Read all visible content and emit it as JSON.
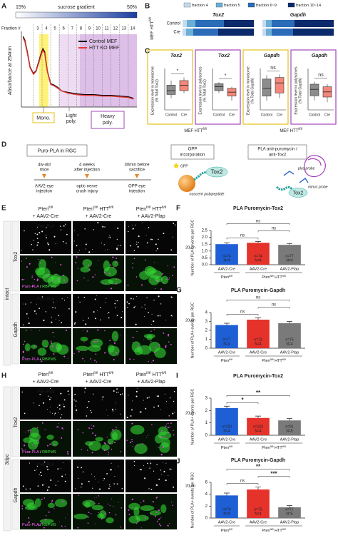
{
  "figure": {
    "panel_labels": [
      "A",
      "B",
      "C",
      "D",
      "E",
      "F",
      "G",
      "H",
      "I",
      "J"
    ],
    "a": {
      "gradient_left": "15%",
      "gradient_title": "sucrose gradient",
      "gradient_right": "50%",
      "regions": [
        [
          "Mono."
        ],
        [
          "Light",
          "poly."
        ],
        [
          "Heavy",
          "poly."
        ]
      ]
    },
    "c_group_labels": [
      [
        "MEF HTT",
        "fl/fl"
      ],
      [
        "MEF HTT",
        "fl/fl"
      ]
    ],
    "d": {
      "title": "Puro-PLA in RGC",
      "timeline_top": [
        [
          "4w-old",
          "mice"
        ],
        [
          "4 weeks",
          "after injection"
        ],
        [
          "30min before",
          "sacrifice"
        ]
      ],
      "timeline_bottom": [
        [
          "AAV2 eye",
          "injection"
        ],
        [
          "optic nerve",
          "crush injury"
        ],
        [
          "OPP eye",
          "injection"
        ]
      ],
      "opp_box": [
        "OPP",
        "incorporation"
      ],
      "opp": "OPP",
      "tox2": "Tox2",
      "nascent": "nascent polypeptide",
      "pla_box": [
        "PLA anti-puromycin /",
        "anti-Tox2"
      ],
      "plus_probe": "plus probe",
      "minus_probe": "minus probe"
    },
    "e": {
      "condition": "intact",
      "rows": [
        "Tox2",
        "Gapdh"
      ],
      "columns": [
        [
          "Pten",
          "fl/fl"
        ],
        [
          "Pten",
          "fl/fl",
          " HTT",
          "fl/fl"
        ],
        [
          "Pten",
          "fl/fl",
          " HTT",
          "fl/fl"
        ]
      ],
      "column_vectors": [
        "+ AAV2-Cre",
        "+ AAV2-Cre",
        "+ AAV2-Plap"
      ],
      "puro_label": "Puro-PLA",
      "merge_label": [
        "Puro-PLA",
        " / ",
        "RBPMS"
      ],
      "scale_bar": "20µm"
    },
    "h": {
      "condition": "3dpc",
      "rows": [
        "Tox2",
        "Gapdh"
      ],
      "columns": [
        [
          "Pten",
          "fl/fl"
        ],
        [
          "Pten",
          "fl/fl",
          " HTT",
          "fl/fl"
        ],
        [
          "Pten",
          "fl/fl",
          " HTT",
          "fl/fl"
        ]
      ],
      "column_vectors": [
        "+ AAV2-Cre",
        "+ AAV2-Cre",
        "+ AAV2-Plap"
      ],
      "puro_label": "Puro-PLA",
      "merge_label": [
        "Puro-PLA",
        " / ",
        "RBPMS"
      ],
      "scale_bar": "20µm"
    }
  },
  "chart_data": [
    {
      "type": "line",
      "ylabel": "Absorbance at 254nm",
      "xlabel": "Fraction #",
      "xlim": [
        1.6,
        15
      ],
      "ylim": [
        0,
        1
      ],
      "xticks": [
        3,
        4,
        5,
        6,
        7,
        8,
        9,
        10,
        11,
        12,
        13,
        14
      ],
      "x": [
        1.8,
        2.0,
        2.3,
        2.6,
        3.0,
        3.3,
        3.6,
        3.9,
        4.1,
        4.3,
        4.6,
        5.0,
        5.4,
        5.8,
        6.3,
        7.0,
        7.5,
        8.0,
        9.0,
        10.0,
        11.0,
        12.0,
        13.0,
        14.0,
        14.6
      ],
      "series": [
        {
          "name": "Control MEF",
          "color": "#000000",
          "values": [
            0.97,
            0.92,
            0.75,
            0.55,
            0.46,
            0.5,
            0.62,
            0.74,
            0.8,
            0.76,
            0.5,
            0.32,
            0.3,
            0.27,
            0.22,
            0.2,
            0.19,
            0.18,
            0.17,
            0.17,
            0.16,
            0.16,
            0.15,
            0.14,
            0.12
          ]
        },
        {
          "name": "HTT KO MEF",
          "color": "#e8352e",
          "values": [
            0.95,
            0.9,
            0.73,
            0.54,
            0.45,
            0.49,
            0.6,
            0.72,
            0.78,
            0.74,
            0.49,
            0.31,
            0.29,
            0.26,
            0.22,
            0.19,
            0.18,
            0.17,
            0.16,
            0.16,
            0.15,
            0.15,
            0.14,
            0.13,
            0.11
          ]
        }
      ]
    },
    {
      "type": "stacked_bar",
      "categories": [
        "Control",
        "Cre"
      ],
      "group_label": [
        "MEF HTT",
        "fl/fl"
      ],
      "xlim": [
        0,
        100
      ],
      "series": [
        {
          "name": "fraction 4",
          "color": "#c6dbef"
        },
        {
          "name": "fraction 5",
          "color": "#6baed6"
        },
        {
          "name": "fraction 6~9",
          "color": "#2b6cb8"
        },
        {
          "name": "fraction 10~14",
          "color": "#0a2a6b"
        }
      ],
      "facets": [
        {
          "title": "Tox2",
          "values": [
            [
              6,
              5
            ],
            [
              12,
              10
            ],
            [
              40,
              35
            ],
            [
              42,
              50
            ]
          ]
        },
        {
          "title": "Gapdh",
          "values": [
            [
              5,
              5
            ],
            [
              8,
              8
            ],
            [
              32,
              30
            ],
            [
              55,
              57
            ]
          ]
        }
      ]
    },
    {
      "type": "box",
      "title": "Tox2",
      "ylabel": [
        "Expression level in monosome",
        "(% Total Tox2)"
      ],
      "frame_color": "#e3c21a",
      "categories": [
        "Control",
        "Cre"
      ],
      "colors": [
        "#8c8c8c",
        "#f4877a"
      ],
      "ylim": [
        0,
        50
      ],
      "significance": "*",
      "boxes": [
        {
          "min": 15,
          "q1": 20,
          "median": 25,
          "q3": 32,
          "max": 38
        },
        {
          "min": 22,
          "q1": 25,
          "median": 32,
          "q3": 38,
          "max": 42
        }
      ]
    },
    {
      "type": "box",
      "title": "Tox2",
      "ylabel": [
        "Expression level in polysomes",
        "(% Total Tox2)"
      ],
      "frame_color": "#a347b8",
      "categories": [
        "Control",
        "Cre"
      ],
      "colors": [
        "#8c8c8c",
        "#f4877a"
      ],
      "ylim": [
        50,
        100
      ],
      "significance": "*",
      "boxes": [
        {
          "min": 72,
          "q1": 75,
          "median": 80,
          "q3": 84,
          "max": 86
        },
        {
          "min": 62,
          "q1": 68,
          "median": 73,
          "q3": 78,
          "max": 80
        }
      ]
    },
    {
      "type": "box",
      "title": "Gapdh",
      "ylabel": [
        "Expression level in monosome",
        "(% Total Gapdh)"
      ],
      "frame_color": "#e3c21a",
      "categories": [
        "Control",
        "Cre"
      ],
      "colors": [
        "#8c8c8c",
        "#f4877a"
      ],
      "ylim": [
        0,
        50
      ],
      "significance": "ns",
      "boxes": [
        {
          "min": 12,
          "q1": 18,
          "median": 28,
          "q3": 40,
          "max": 45
        },
        {
          "min": 15,
          "q1": 22,
          "median": 35,
          "q3": 42,
          "max": 46
        }
      ]
    },
    {
      "type": "box",
      "title": "Gapdh",
      "ylabel": [
        "Expression level in polysomes",
        "(% Total Gapdh)"
      ],
      "frame_color": "#a347b8",
      "categories": [
        "Control",
        "Cre"
      ],
      "colors": [
        "#8c8c8c",
        "#f4877a"
      ],
      "ylim": [
        40,
        100
      ],
      "significance": "ns",
      "boxes": [
        {
          "min": 55,
          "q1": 62,
          "median": 72,
          "q3": 80,
          "max": 84
        },
        {
          "min": 52,
          "q1": 60,
          "median": 68,
          "q3": 76,
          "max": 80
        }
      ]
    },
    {
      "type": "bar",
      "title": "PLA Puromycin-Tox2",
      "ylabel": "Number of PLA+ events per RGC",
      "categories": [
        "AAV2-Cre",
        "AAV2-Cre",
        "AAV2-Plap"
      ],
      "colors": [
        "#1f5fd6",
        "#e5322b",
        "#7a7a7a"
      ],
      "values": [
        1.5,
        1.6,
        1.45
      ],
      "errors": [
        0.1,
        0.1,
        0.1
      ],
      "n_labels": [
        "n=74",
        "n=74",
        "n=77"
      ],
      "N_labels": [
        "N=4",
        "N=4",
        "N=4"
      ],
      "groups": [
        {
          "label": [
            "Pten",
            "fl/fl"
          ],
          "span": [
            0,
            0
          ]
        },
        {
          "label": [
            "Pten",
            "fl/fl",
            " HTT",
            "fl/fl"
          ],
          "span": [
            1,
            2
          ]
        }
      ],
      "ylim": [
        0,
        2.5
      ],
      "yticks": [
        {
          "value": 0,
          "label": "0.0"
        },
        0.5,
        {
          "value": 1,
          "label": "1.0"
        },
        1.5,
        {
          "value": 2,
          "label": "2.0"
        },
        2.5
      ],
      "significance": [
        {
          "pair": [
            0,
            1
          ],
          "label": "ns"
        },
        {
          "pair": [
            1,
            2
          ],
          "label": "ns"
        },
        {
          "pair": [
            0,
            2
          ],
          "label": "ns"
        }
      ]
    },
    {
      "type": "bar",
      "title": "PLA Puromycin-Gapdh",
      "ylabel": "Number of PLA+ events per RGC",
      "categories": [
        "AAV2-Cre",
        "AAV2-Cre",
        "AAV2-Plap"
      ],
      "colors": [
        "#1f5fd6",
        "#e5322b",
        "#7a7a7a"
      ],
      "values": [
        2.6,
        3.2,
        2.8
      ],
      "errors": [
        0.2,
        0.2,
        0.2
      ],
      "n_labels": [
        "n=77",
        "n=73",
        "n=75"
      ],
      "N_labels": [
        "N=4",
        "N=4",
        "N=4"
      ],
      "groups": [
        {
          "label": [
            "Pten",
            "fl/fl"
          ],
          "span": [
            0,
            0
          ]
        },
        {
          "label": [
            "Pten",
            "fl/fl",
            " HTT",
            "fl/fl"
          ],
          "span": [
            1,
            2
          ]
        }
      ],
      "ylim": [
        0,
        4
      ],
      "yticks": [
        0,
        1,
        2,
        3,
        4
      ],
      "significance": [
        {
          "pair": [
            0,
            1
          ],
          "label": "ns"
        },
        {
          "pair": [
            1,
            2
          ],
          "label": "ns"
        },
        {
          "pair": [
            0,
            2
          ],
          "label": "ns"
        }
      ]
    },
    {
      "type": "bar",
      "title": "PLA Puromycin-Tox2",
      "ylabel": "Number of PLA+ events per RGC",
      "categories": [
        "AAV2-Cre",
        "AAV2-Cre",
        "AAV2-Plap"
      ],
      "colors": [
        "#1f5fd6",
        "#e5322b",
        "#7a7a7a"
      ],
      "values": [
        2.2,
        1.4,
        1.2
      ],
      "errors": [
        0.15,
        0.15,
        0.15
      ],
      "n_labels": [
        "n=100",
        "n=103",
        "n=91"
      ],
      "N_labels": [
        "N=4",
        "N=4",
        "N=5"
      ],
      "groups": [
        {
          "label": [
            "Pten",
            "fl/fl"
          ],
          "span": [
            0,
            0
          ]
        },
        {
          "label": [
            "Pten",
            "fl/fl",
            " HTT",
            "fl/fl"
          ],
          "span": [
            1,
            2
          ]
        }
      ],
      "ylim": [
        0,
        3
      ],
      "yticks": [
        0,
        1,
        2,
        3
      ],
      "significance": [
        {
          "pair": [
            0,
            1
          ],
          "label": "*"
        },
        {
          "pair": [
            0,
            2
          ],
          "label": "**"
        }
      ]
    },
    {
      "type": "bar",
      "title": "PLA Puromycin-Gapdh",
      "ylabel": "Number of PLA+ events per RGC",
      "categories": [
        "AAV2-Cre",
        "AAV2-Cre",
        "AAV2-Plap"
      ],
      "colors": [
        "#1f5fd6",
        "#e5322b",
        "#7a7a7a"
      ],
      "values": [
        3.8,
        4.8,
        1.8
      ],
      "errors": [
        0.4,
        0.4,
        0.3
      ],
      "n_labels": [
        "n=70",
        "n=75",
        "n=77"
      ],
      "N_labels": [
        "N=4",
        "N=4",
        "N=5"
      ],
      "groups": [
        {
          "label": [
            "Pten",
            "fl/fl"
          ],
          "span": [
            0,
            0
          ]
        },
        {
          "label": [
            "Pten",
            "fl/fl",
            " HTT",
            "fl/fl"
          ],
          "span": [
            1,
            2
          ]
        }
      ],
      "ylim": [
        0,
        6
      ],
      "yticks": [
        0,
        2,
        4,
        6
      ],
      "significance": [
        {
          "pair": [
            0,
            1
          ],
          "label": "ns"
        },
        {
          "pair": [
            1,
            2
          ],
          "label": "***"
        },
        {
          "pair": [
            0,
            2
          ],
          "label": "**"
        }
      ]
    }
  ]
}
